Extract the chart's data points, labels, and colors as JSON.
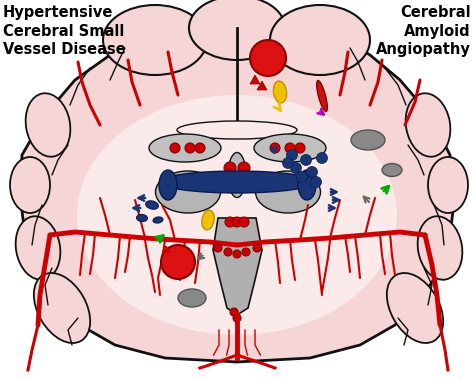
{
  "title_left": "Hypertensive\nCerebral Small\nVessel Disease",
  "title_right": "Cerebral\nAmyloid\nAngiopathy",
  "bg_color": "#ffffff",
  "brain_fill": "#f5d5d5",
  "brain_inner_fill": "#f8e8e8",
  "outline_color": "#111111",
  "red_vessel": "#cc0000",
  "dark_red": "#8b0000",
  "gray_struct": "#a8a8a8",
  "dark_gray": "#707070",
  "blue_dark": "#1a3575",
  "white_matter_fill": "#faeaea"
}
